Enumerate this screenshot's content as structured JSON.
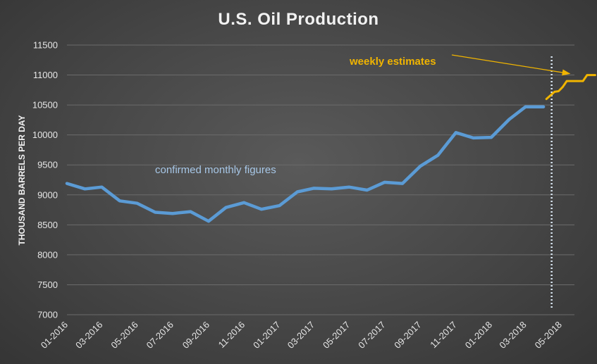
{
  "chart_data": {
    "type": "line",
    "title": "U.S. Oil Production",
    "xlabel": "",
    "ylabel": "THOUSAND BARRELS PER DAY",
    "ylim": [
      7000,
      11500
    ],
    "yticks": [
      "11500",
      "11000",
      "10500",
      "10000",
      "9500",
      "9000",
      "8500",
      "8000",
      "7500",
      "7000"
    ],
    "xticks": [
      "01-2016",
      "03-2016",
      "05-2016",
      "07-2016",
      "09-2016",
      "11-2016",
      "01-2017",
      "03-2017",
      "05-2017",
      "07-2017",
      "09-2017",
      "11-2017",
      "01-2018",
      "03-2018",
      "05-2018"
    ],
    "grid": true,
    "series": [
      {
        "name": "confirmed monthly figures",
        "color": "#5b9bd5",
        "x": [
          "2016-01",
          "2016-02",
          "2016-03",
          "2016-04",
          "2016-05",
          "2016-06",
          "2016-07",
          "2016-08",
          "2016-09",
          "2016-10",
          "2016-11",
          "2016-12",
          "2017-01",
          "2017-02",
          "2017-03",
          "2017-04",
          "2017-05",
          "2017-06",
          "2017-07",
          "2017-08",
          "2017-09",
          "2017-10",
          "2017-11",
          "2017-12",
          "2018-01",
          "2018-02",
          "2018-03",
          "2018-04"
        ],
        "values": [
          9190,
          9100,
          9130,
          8900,
          8860,
          8710,
          8690,
          8720,
          8560,
          8790,
          8870,
          8760,
          8820,
          9050,
          9110,
          9100,
          9130,
          9080,
          9210,
          9190,
          9480,
          9660,
          10040,
          9950,
          9960,
          10260,
          10470,
          10470
        ]
      },
      {
        "name": "weekly estimates",
        "color": "#f0b400",
        "x": [
          "2018-04-06",
          "2018-04-13",
          "2018-04-20",
          "2018-04-27",
          "2018-05-04",
          "2018-05-11",
          "2018-05-18",
          "2018-05-25",
          "2018-06-01",
          "2018-06-08",
          "2018-06-15",
          "2018-06-22",
          "2018-06-29"
        ],
        "values": [
          10600,
          10660,
          10720,
          10730,
          10800,
          10900,
          10900,
          10900,
          10900,
          10900,
          11000,
          11000,
          11000
        ]
      }
    ],
    "annotations": {
      "monthly_label": "confirmed monthly figures",
      "weekly_label": "weekly estimates"
    }
  }
}
